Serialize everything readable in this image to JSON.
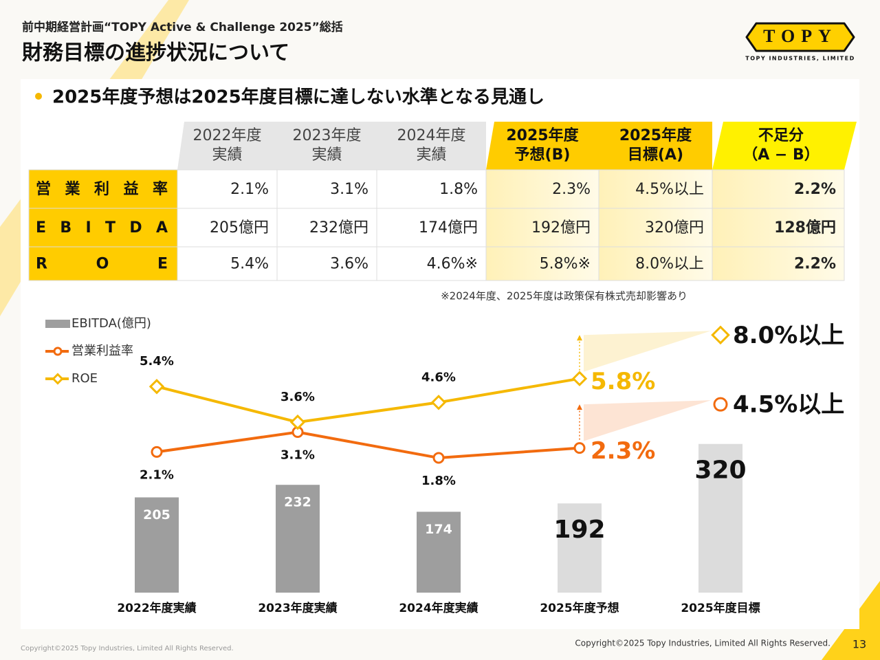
{
  "header": {
    "subtitle": "前中期経営計画“TOPY Active & Challenge 2025”総括",
    "title": "財務目標の進捗状況について",
    "logo": "TOPY",
    "logo_caption": "TOPY INDUSTRIES, LIMITED"
  },
  "bullet": "2025年度予想は2025年度目標に達しない水準となる見通し",
  "table": {
    "columns": [
      [
        "2022年度",
        "実績"
      ],
      [
        "2023年度",
        "実績"
      ],
      [
        "2024年度",
        "実績"
      ],
      [
        "2025年度",
        "予想(B)"
      ],
      [
        "2025年度",
        "目標(A)"
      ],
      [
        "不足分",
        "（A − B）"
      ]
    ],
    "rows": [
      [
        "営業利益率",
        "2.1%",
        "3.1%",
        "1.8%",
        "2.3%",
        "4.5%以上",
        "2.2%"
      ],
      [
        "EBITDA",
        "205億円",
        "232億円",
        "174億円",
        "192億円",
        "320億円",
        "128億円"
      ],
      [
        "ROE",
        "5.4%",
        "3.6%",
        "4.6%※",
        "5.8%※",
        "8.0%以上",
        "2.2%"
      ]
    ],
    "note": "※2024年度、2025年度は政策保有株式売却影響あり"
  },
  "chart_data": {
    "type": "combo",
    "categories": [
      "2022年度実績",
      "2023年度実績",
      "2024年度実績",
      "2025年度予想",
      "2025年度目標"
    ],
    "series": [
      {
        "name": "EBITDA(億円)",
        "type": "bar",
        "colors": [
          "#9e9e9e",
          "#9e9e9e",
          "#9e9e9e",
          "#dcdcdc",
          "#dcdcdc"
        ],
        "values": [
          205,
          232,
          174,
          192,
          320
        ]
      },
      {
        "name": "営業利益率",
        "type": "line",
        "axis": "y2",
        "marker": "circle",
        "color": "#f26b0f",
        "values": [
          2.1,
          3.1,
          1.8,
          2.3,
          null
        ],
        "value_labels": [
          "2.1%",
          "3.1%",
          "1.8%",
          "2.3%",
          null
        ],
        "target": {
          "value": 4.5,
          "label": "4.5%以上"
        }
      },
      {
        "name": "ROE",
        "type": "line",
        "axis": "y2",
        "marker": "diamond",
        "color": "#f5b800",
        "values": [
          5.4,
          3.6,
          4.6,
          5.8,
          null
        ],
        "value_labels": [
          "5.4%",
          "3.6%",
          "4.6%",
          "5.8%",
          null
        ],
        "target": {
          "value": 8.0,
          "label": "8.0%以上"
        }
      }
    ],
    "ylim": [
      0,
      580
    ],
    "y2lim": [
      -5,
      8.6
    ]
  },
  "footer": {
    "left": "Copyright©2025 Topy Industries, Limited All Rights Reserved.",
    "right": "Copyright©2025 Topy Industries, Limited All Rights Reserved.",
    "page": "13"
  }
}
